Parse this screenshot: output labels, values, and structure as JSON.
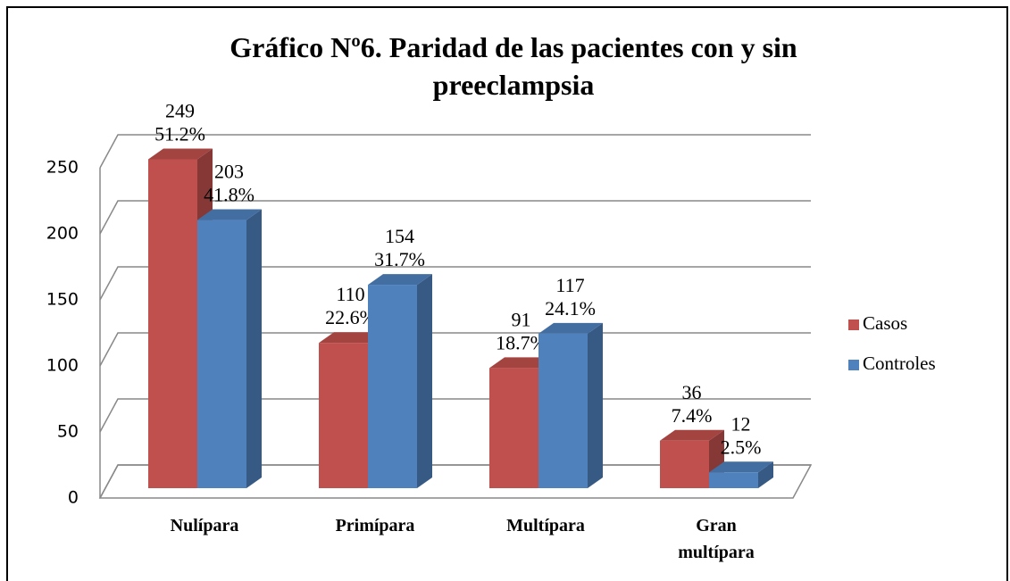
{
  "chart_data": {
    "type": "bar3d",
    "title": "Gráfico Nº6. Paridad de las pacientes con y sin preeclampsia",
    "categories": [
      "Nulípara",
      "Primípara",
      "Multípara",
      "Gran multípara"
    ],
    "series": [
      {
        "name": "Casos",
        "color": "#c0504d",
        "values": [
          249,
          110,
          91,
          36
        ],
        "percent_labels": [
          "51.2%",
          "22.6%",
          "18.7%",
          "7.4%"
        ]
      },
      {
        "name": "Controles",
        "color": "#4f81bd",
        "values": [
          203,
          154,
          117,
          12
        ],
        "percent_labels": [
          "41.8%",
          "31.7%",
          "24.1%",
          "2.5%"
        ]
      }
    ],
    "ylim": [
      0,
      250
    ],
    "yticks": [
      0,
      50,
      100,
      150,
      200,
      250
    ],
    "grid": true,
    "legend": "right"
  }
}
